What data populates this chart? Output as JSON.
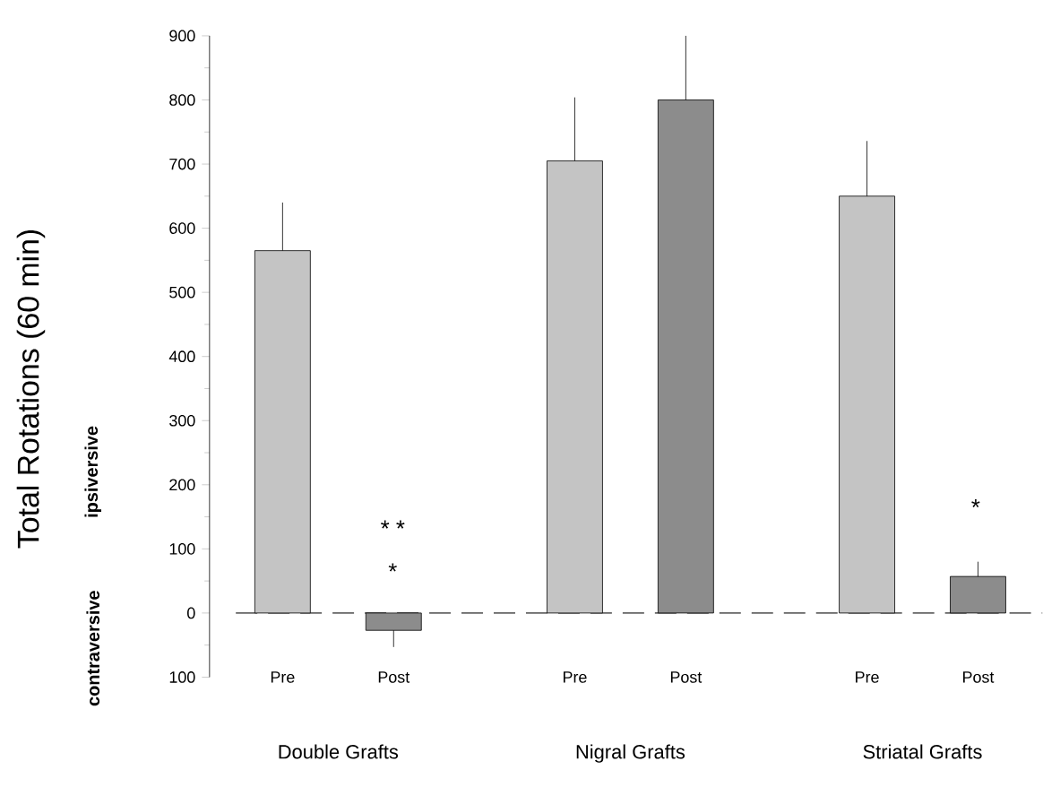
{
  "chart_data": {
    "type": "bar",
    "ylabel": "Total Rotations (60 min)",
    "categories": [
      "Double Grafts",
      "Nigral Grafts",
      "Striatal Grafts"
    ],
    "series": [
      {
        "name": "Pre",
        "color": "#c4c4c4",
        "values": [
          565,
          705,
          650
        ],
        "errors": [
          [
            565,
            640
          ],
          [
            705,
            804
          ],
          [
            650,
            736
          ]
        ]
      },
      {
        "name": "Post",
        "color": "#8c8c8c",
        "values": [
          -27,
          800,
          57
        ],
        "errors": [
          [
            -53,
            -27
          ],
          [
            800,
            900
          ],
          [
            57,
            80
          ]
        ]
      }
    ],
    "ylim": [
      -100,
      900
    ],
    "yticks": [
      {
        "value": -100,
        "label": "100"
      },
      0,
      100,
      200,
      300,
      400,
      500,
      600,
      700,
      800,
      900
    ],
    "ref_lines": [
      {
        "axis": "y",
        "value": 0,
        "color": "#666666",
        "line_style": "dashed"
      }
    ],
    "annotations": [
      "ipsiversive",
      "contraversive",
      "* *",
      "*",
      "*"
    ],
    "grid": false
  }
}
